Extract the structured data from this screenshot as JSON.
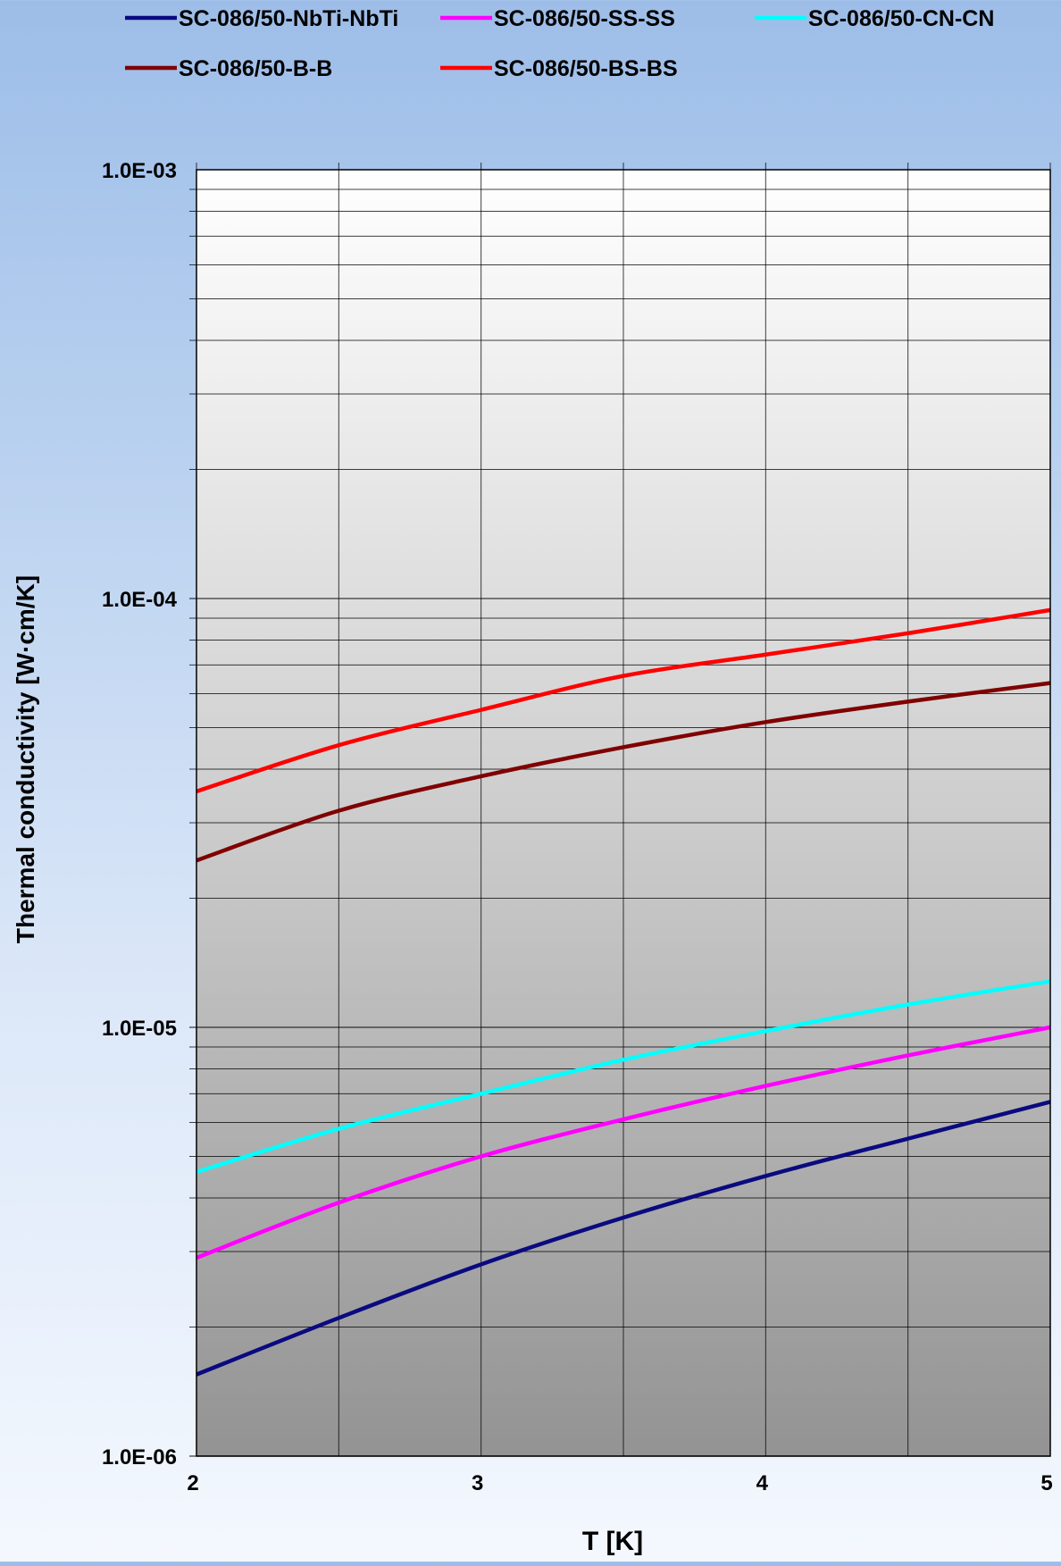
{
  "chart_data": {
    "type": "line",
    "title": "",
    "xlabel": "T [K]",
    "ylabel": "Thermal conductivity [W·cm/K]",
    "xlim": [
      2,
      5
    ],
    "ylim": [
      1e-06,
      0.001
    ],
    "y_scale": "log",
    "x_ticks": [
      2,
      3,
      4,
      5
    ],
    "x_tick_labels": [
      "2",
      "3",
      "4",
      "5"
    ],
    "y_ticks": [
      1e-06,
      1e-05,
      0.0001,
      0.001
    ],
    "y_tick_labels": [
      "1.0E-06",
      "1.0E-05",
      "1.0E-04",
      "1.0E-03"
    ],
    "grid": true,
    "legend_position": "top",
    "x": [
      2.0,
      2.5,
      3.0,
      3.5,
      4.0,
      4.5,
      5.0
    ],
    "series": [
      {
        "name": "SC-086/50-NbTi-NbTi",
        "color": "#0a0a80",
        "values": [
          1.55e-06,
          2.1e-06,
          2.8e-06,
          3.6e-06,
          4.5e-06,
          5.5e-06,
          6.7e-06
        ]
      },
      {
        "name": "SC-086/50-SS-SS",
        "color": "#ff00ff",
        "values": [
          2.9e-06,
          3.9e-06,
          5e-06,
          6.1e-06,
          7.3e-06,
          8.6e-06,
          1e-05
        ]
      },
      {
        "name": "SC-086/50-CN-CN",
        "color": "#00ffff",
        "values": [
          4.6e-06,
          5.8e-06,
          7e-06,
          8.4e-06,
          9.8e-06,
          1.13e-05,
          1.28e-05
        ]
      },
      {
        "name": "SC-086/50-B-B",
        "color": "#800000",
        "values": [
          2.45e-05,
          3.2e-05,
          3.85e-05,
          4.5e-05,
          5.15e-05,
          5.75e-05,
          6.35e-05
        ]
      },
      {
        "name": "SC-086/50-BS-BS",
        "color": "#ff0000",
        "values": [
          3.55e-05,
          4.55e-05,
          5.5e-05,
          6.6e-05,
          7.4e-05,
          8.3e-05,
          9.4e-05
        ]
      }
    ]
  }
}
